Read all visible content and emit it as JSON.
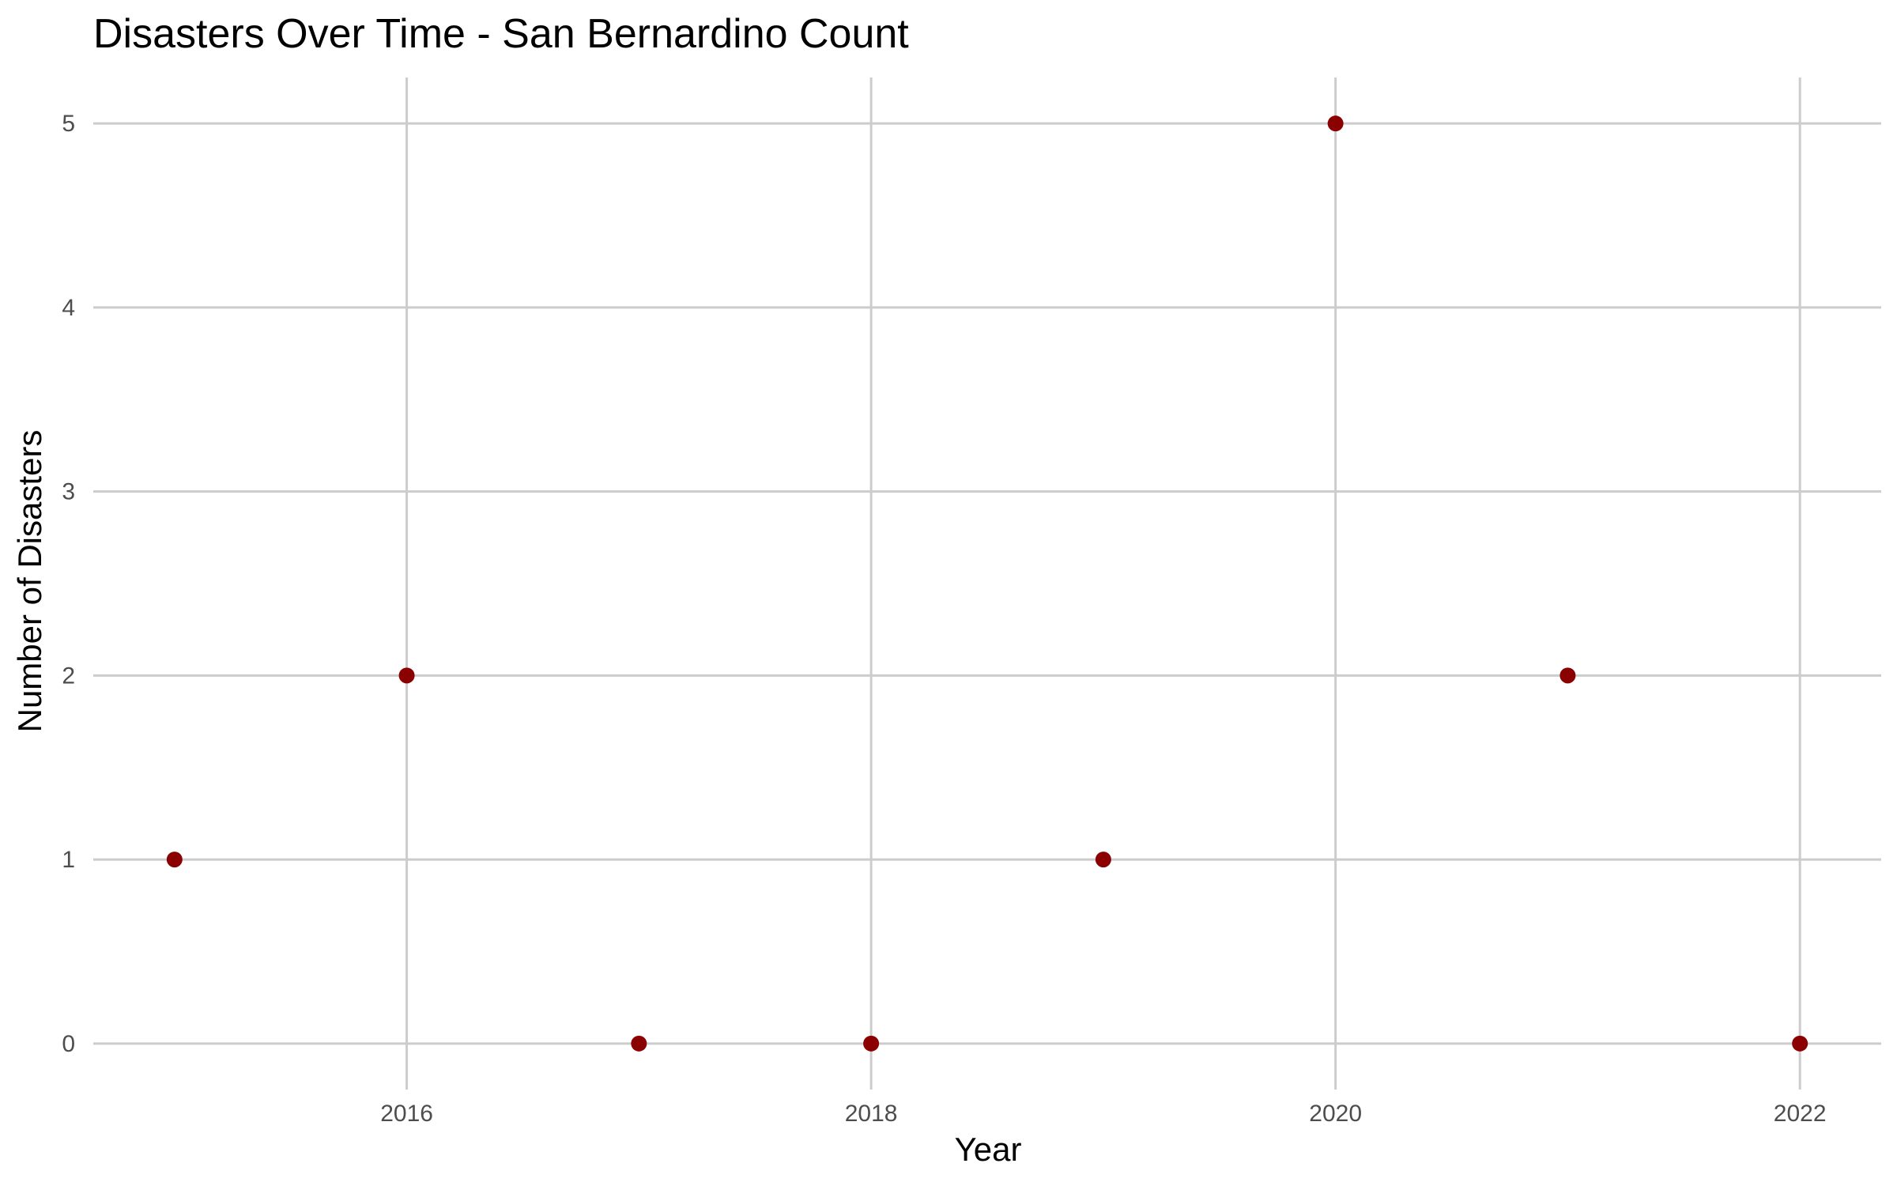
{
  "chart_data": {
    "type": "scatter",
    "title": "Disasters Over Time - San Bernardino Count",
    "xlabel": "Year",
    "ylabel": "Number of Disasters",
    "x": [
      2015,
      2016,
      2017,
      2018,
      2019,
      2020,
      2021,
      2022
    ],
    "series": [
      {
        "values": [
          1,
          2,
          0,
          0,
          1,
          5,
          2,
          0
        ]
      }
    ],
    "xlim": [
      2014.65,
      2022.35
    ],
    "ylim": [
      -0.25,
      5.25
    ],
    "x_ticks": [
      "2016",
      "2018",
      "2020",
      "2022"
    ],
    "y_ticks": [
      "0",
      "1",
      "2",
      "3",
      "4",
      "5"
    ],
    "x_minor_grid": [
      2015,
      2017,
      2019,
      2021
    ],
    "grid": true,
    "legend": "none",
    "colors": {
      "point": "#8b0000",
      "grid": "#cccccc",
      "tick_text": "#4d4d4d",
      "title_text": "#000000"
    }
  }
}
